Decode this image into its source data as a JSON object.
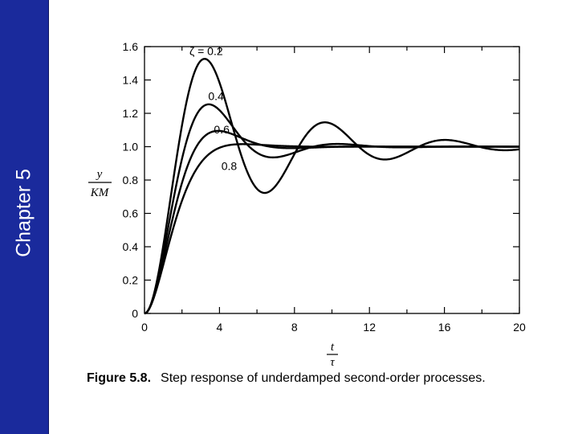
{
  "sidebar": {
    "label": "Chapter 5",
    "color": "#1a2a9c"
  },
  "caption": {
    "figure": "Figure 5.8.",
    "text": "Step response of underdamped second-order processes."
  },
  "chart_data": {
    "type": "line",
    "xlabel_num": "t",
    "xlabel_den": "τ",
    "ylabel_num": "y",
    "ylabel_den": "KM",
    "xlim": [
      0,
      20
    ],
    "ylim": [
      0,
      1.6
    ],
    "xticks": [
      0,
      4,
      8,
      12,
      16,
      20
    ],
    "yticks": [
      0,
      0.2,
      0.4,
      0.6,
      0.8,
      1.0,
      1.2,
      1.4,
      1.6
    ],
    "ytick_labels": [
      "0",
      "0.2",
      "0.4",
      "0.6",
      "0.8",
      "1.0",
      "1.2",
      "1.4",
      "1.6"
    ],
    "grid": false,
    "series": [
      {
        "name": "ζ = 0.2",
        "zeta": 0.2,
        "label_at": {
          "x": 2.4,
          "y": 1.55
        }
      },
      {
        "name": "0.4",
        "zeta": 0.4,
        "label_at": {
          "x": 3.4,
          "y": 1.28
        }
      },
      {
        "name": "0.6",
        "zeta": 0.6,
        "label_at": {
          "x": 3.7,
          "y": 1.08
        }
      },
      {
        "name": "0.8",
        "zeta": 0.8,
        "label_at": {
          "x": 4.1,
          "y": 0.86
        }
      }
    ]
  }
}
